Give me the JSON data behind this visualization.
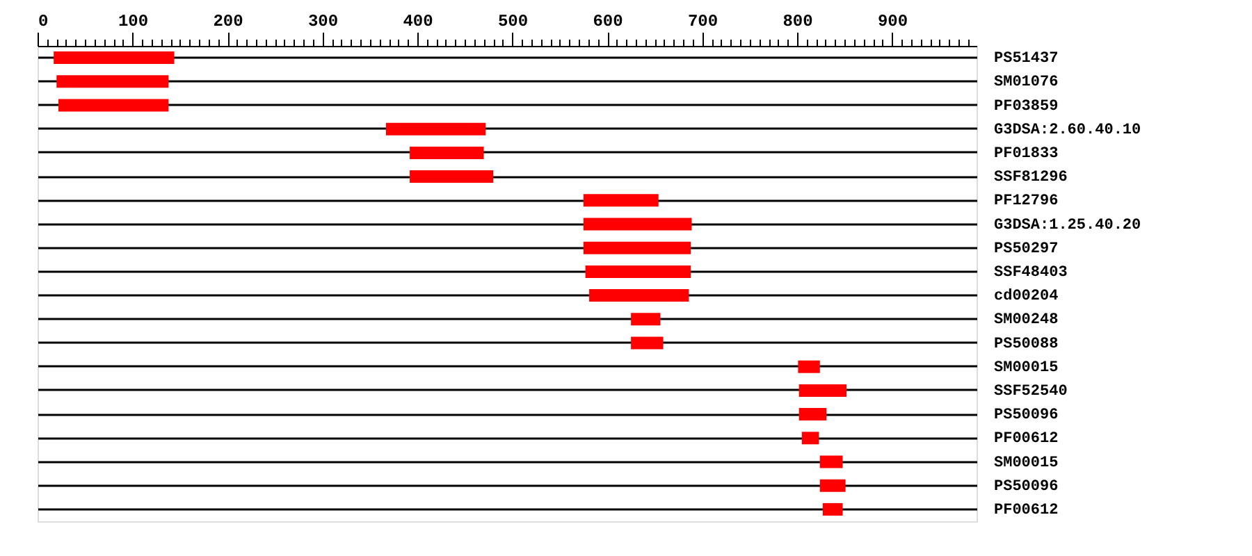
{
  "chart_data": {
    "type": "bar",
    "orientation": "horizontal",
    "categories": [
      "PS51437",
      "SM01076",
      "PF03859",
      "G3DSA:2.60.40.10",
      "PF01833",
      "SSF81296",
      "PF12796",
      "G3DSA:1.25.40.20",
      "PS50297",
      "SSF48403",
      "cd00204",
      "SM00248",
      "PS50088",
      "SM00015",
      "SSF52540",
      "PS50096",
      "PF00612",
      "SM00015",
      "PS50096",
      "PF00612"
    ],
    "base": [
      17,
      20,
      22,
      367,
      392,
      392,
      575,
      575,
      575,
      577,
      581,
      625,
      625,
      801,
      802,
      802,
      805,
      824,
      824,
      827
    ],
    "values": [
      127,
      118,
      116,
      105,
      78,
      88,
      79,
      114,
      113,
      111,
      105,
      31,
      34,
      23,
      50,
      29,
      18,
      24,
      27,
      21
    ],
    "color": "#ff0000",
    "xlim": [
      0,
      989
    ],
    "xticks": [
      0,
      {
        "value": 10,
        "label": null
      },
      {
        "value": 20,
        "label": null
      },
      {
        "value": 30,
        "label": null
      },
      {
        "value": 40,
        "label": null
      },
      {
        "value": 50,
        "label": null
      },
      {
        "value": 60,
        "label": null
      },
      {
        "value": 70,
        "label": null
      },
      {
        "value": 80,
        "label": null
      },
      {
        "value": 90,
        "label": null
      },
      100,
      {
        "value": 110,
        "label": null
      },
      {
        "value": 120,
        "label": null
      },
      {
        "value": 130,
        "label": null
      },
      {
        "value": 140,
        "label": null
      },
      {
        "value": 150,
        "label": null
      },
      {
        "value": 160,
        "label": null
      },
      {
        "value": 170,
        "label": null
      },
      {
        "value": 180,
        "label": null
      },
      {
        "value": 190,
        "label": null
      },
      200,
      {
        "value": 210,
        "label": null
      },
      {
        "value": 220,
        "label": null
      },
      {
        "value": 230,
        "label": null
      },
      {
        "value": 240,
        "label": null
      },
      {
        "value": 250,
        "label": null
      },
      {
        "value": 260,
        "label": null
      },
      {
        "value": 270,
        "label": null
      },
      {
        "value": 280,
        "label": null
      },
      {
        "value": 290,
        "label": null
      },
      300,
      {
        "value": 310,
        "label": null
      },
      {
        "value": 320,
        "label": null
      },
      {
        "value": 330,
        "label": null
      },
      {
        "value": 340,
        "label": null
      },
      {
        "value": 350,
        "label": null
      },
      {
        "value": 360,
        "label": null
      },
      {
        "value": 370,
        "label": null
      },
      {
        "value": 380,
        "label": null
      },
      {
        "value": 390,
        "label": null
      },
      400,
      {
        "value": 410,
        "label": null
      },
      {
        "value": 420,
        "label": null
      },
      {
        "value": 430,
        "label": null
      },
      {
        "value": 440,
        "label": null
      },
      {
        "value": 450,
        "label": null
      },
      {
        "value": 460,
        "label": null
      },
      {
        "value": 470,
        "label": null
      },
      {
        "value": 480,
        "label": null
      },
      {
        "value": 490,
        "label": null
      },
      500,
      {
        "value": 510,
        "label": null
      },
      {
        "value": 520,
        "label": null
      },
      {
        "value": 530,
        "label": null
      },
      {
        "value": 540,
        "label": null
      },
      {
        "value": 550,
        "label": null
      },
      {
        "value": 560,
        "label": null
      },
      {
        "value": 570,
        "label": null
      },
      {
        "value": 580,
        "label": null
      },
      {
        "value": 590,
        "label": null
      },
      600,
      {
        "value": 610,
        "label": null
      },
      {
        "value": 620,
        "label": null
      },
      {
        "value": 630,
        "label": null
      },
      {
        "value": 640,
        "label": null
      },
      {
        "value": 650,
        "label": null
      },
      {
        "value": 660,
        "label": null
      },
      {
        "value": 670,
        "label": null
      },
      {
        "value": 680,
        "label": null
      },
      {
        "value": 690,
        "label": null
      },
      700,
      {
        "value": 710,
        "label": null
      },
      {
        "value": 720,
        "label": null
      },
      {
        "value": 730,
        "label": null
      },
      {
        "value": 740,
        "label": null
      },
      {
        "value": 750,
        "label": null
      },
      {
        "value": 760,
        "label": null
      },
      {
        "value": 770,
        "label": null
      },
      {
        "value": 780,
        "label": null
      },
      {
        "value": 790,
        "label": null
      },
      800,
      {
        "value": 810,
        "label": null
      },
      {
        "value": 820,
        "label": null
      },
      {
        "value": 830,
        "label": null
      },
      {
        "value": 840,
        "label": null
      },
      {
        "value": 850,
        "label": null
      },
      {
        "value": 860,
        "label": null
      },
      {
        "value": 870,
        "label": null
      },
      {
        "value": 880,
        "label": null
      },
      {
        "value": 890,
        "label": null
      },
      900,
      {
        "value": 910,
        "label": null
      },
      {
        "value": 920,
        "label": null
      },
      {
        "value": 930,
        "label": null
      },
      {
        "value": 940,
        "label": null
      },
      {
        "value": 950,
        "label": null
      },
      {
        "value": 960,
        "label": null
      },
      {
        "value": 970,
        "label": null
      },
      {
        "value": 980,
        "label": null
      }
    ],
    "grid": "y"
  }
}
